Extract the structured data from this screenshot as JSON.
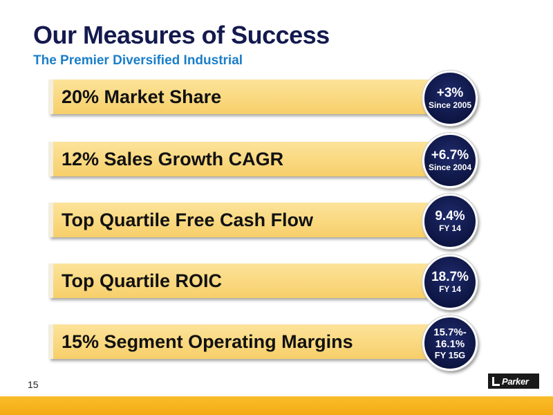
{
  "header": {
    "title": "Our Measures of Success",
    "subtitle": "The Premier Diversified Industrial"
  },
  "measures": [
    {
      "label": "20% Market Share",
      "value": "+3%",
      "sub": "Since 2005"
    },
    {
      "label": "12% Sales Growth CAGR",
      "value": "+6.7%",
      "sub": "Since 2004"
    },
    {
      "label": "Top Quartile Free Cash Flow",
      "value": "9.4%",
      "sub": "FY 14"
    },
    {
      "label": "Top Quartile ROIC",
      "value": "18.7%",
      "sub": "FY 14"
    },
    {
      "label": "15% Segment Operating Margins",
      "value": "15.7%-",
      "value2": "16.1%",
      "sub": "FY 15G"
    }
  ],
  "footer": {
    "page_number": "15",
    "logo_text": "Parker"
  },
  "colors": {
    "title": "#141a4e",
    "subtitle": "#1a7ec8",
    "bar": "#f9d883",
    "badge": "#121b52",
    "footer_strip": "#f6b21c"
  }
}
